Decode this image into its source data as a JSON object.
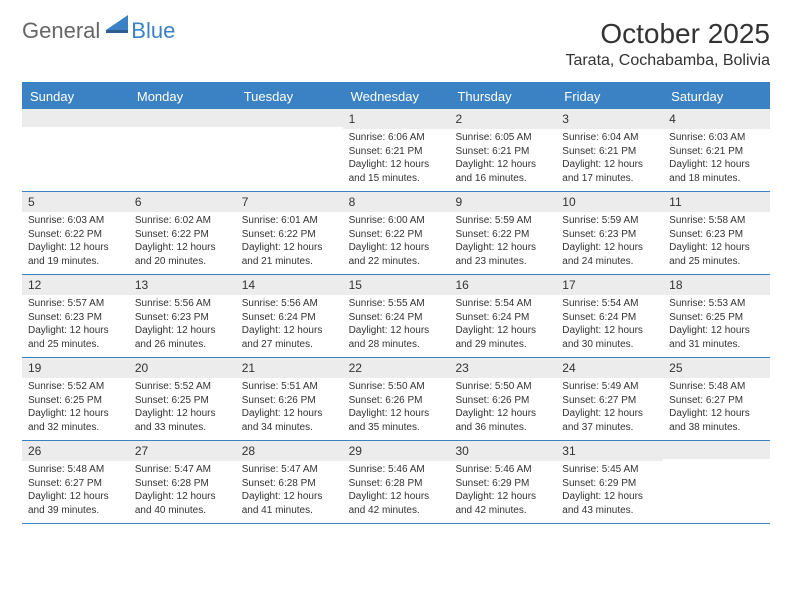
{
  "logo": {
    "text1": "General",
    "text2": "Blue"
  },
  "title": "October 2025",
  "location": "Tarata, Cochabamba, Bolivia",
  "colors": {
    "accent": "#3b82c4",
    "daynum_bg": "#ececec",
    "text": "#333333",
    "bg": "#ffffff"
  },
  "weekdays": [
    "Sunday",
    "Monday",
    "Tuesday",
    "Wednesday",
    "Thursday",
    "Friday",
    "Saturday"
  ],
  "weeks": [
    [
      {
        "num": "",
        "sunrise": "",
        "sunset": "",
        "daylight": ""
      },
      {
        "num": "",
        "sunrise": "",
        "sunset": "",
        "daylight": ""
      },
      {
        "num": "",
        "sunrise": "",
        "sunset": "",
        "daylight": ""
      },
      {
        "num": "1",
        "sunrise": "Sunrise: 6:06 AM",
        "sunset": "Sunset: 6:21 PM",
        "daylight": "Daylight: 12 hours and 15 minutes."
      },
      {
        "num": "2",
        "sunrise": "Sunrise: 6:05 AM",
        "sunset": "Sunset: 6:21 PM",
        "daylight": "Daylight: 12 hours and 16 minutes."
      },
      {
        "num": "3",
        "sunrise": "Sunrise: 6:04 AM",
        "sunset": "Sunset: 6:21 PM",
        "daylight": "Daylight: 12 hours and 17 minutes."
      },
      {
        "num": "4",
        "sunrise": "Sunrise: 6:03 AM",
        "sunset": "Sunset: 6:21 PM",
        "daylight": "Daylight: 12 hours and 18 minutes."
      }
    ],
    [
      {
        "num": "5",
        "sunrise": "Sunrise: 6:03 AM",
        "sunset": "Sunset: 6:22 PM",
        "daylight": "Daylight: 12 hours and 19 minutes."
      },
      {
        "num": "6",
        "sunrise": "Sunrise: 6:02 AM",
        "sunset": "Sunset: 6:22 PM",
        "daylight": "Daylight: 12 hours and 20 minutes."
      },
      {
        "num": "7",
        "sunrise": "Sunrise: 6:01 AM",
        "sunset": "Sunset: 6:22 PM",
        "daylight": "Daylight: 12 hours and 21 minutes."
      },
      {
        "num": "8",
        "sunrise": "Sunrise: 6:00 AM",
        "sunset": "Sunset: 6:22 PM",
        "daylight": "Daylight: 12 hours and 22 minutes."
      },
      {
        "num": "9",
        "sunrise": "Sunrise: 5:59 AM",
        "sunset": "Sunset: 6:22 PM",
        "daylight": "Daylight: 12 hours and 23 minutes."
      },
      {
        "num": "10",
        "sunrise": "Sunrise: 5:59 AM",
        "sunset": "Sunset: 6:23 PM",
        "daylight": "Daylight: 12 hours and 24 minutes."
      },
      {
        "num": "11",
        "sunrise": "Sunrise: 5:58 AM",
        "sunset": "Sunset: 6:23 PM",
        "daylight": "Daylight: 12 hours and 25 minutes."
      }
    ],
    [
      {
        "num": "12",
        "sunrise": "Sunrise: 5:57 AM",
        "sunset": "Sunset: 6:23 PM",
        "daylight": "Daylight: 12 hours and 25 minutes."
      },
      {
        "num": "13",
        "sunrise": "Sunrise: 5:56 AM",
        "sunset": "Sunset: 6:23 PM",
        "daylight": "Daylight: 12 hours and 26 minutes."
      },
      {
        "num": "14",
        "sunrise": "Sunrise: 5:56 AM",
        "sunset": "Sunset: 6:24 PM",
        "daylight": "Daylight: 12 hours and 27 minutes."
      },
      {
        "num": "15",
        "sunrise": "Sunrise: 5:55 AM",
        "sunset": "Sunset: 6:24 PM",
        "daylight": "Daylight: 12 hours and 28 minutes."
      },
      {
        "num": "16",
        "sunrise": "Sunrise: 5:54 AM",
        "sunset": "Sunset: 6:24 PM",
        "daylight": "Daylight: 12 hours and 29 minutes."
      },
      {
        "num": "17",
        "sunrise": "Sunrise: 5:54 AM",
        "sunset": "Sunset: 6:24 PM",
        "daylight": "Daylight: 12 hours and 30 minutes."
      },
      {
        "num": "18",
        "sunrise": "Sunrise: 5:53 AM",
        "sunset": "Sunset: 6:25 PM",
        "daylight": "Daylight: 12 hours and 31 minutes."
      }
    ],
    [
      {
        "num": "19",
        "sunrise": "Sunrise: 5:52 AM",
        "sunset": "Sunset: 6:25 PM",
        "daylight": "Daylight: 12 hours and 32 minutes."
      },
      {
        "num": "20",
        "sunrise": "Sunrise: 5:52 AM",
        "sunset": "Sunset: 6:25 PM",
        "daylight": "Daylight: 12 hours and 33 minutes."
      },
      {
        "num": "21",
        "sunrise": "Sunrise: 5:51 AM",
        "sunset": "Sunset: 6:26 PM",
        "daylight": "Daylight: 12 hours and 34 minutes."
      },
      {
        "num": "22",
        "sunrise": "Sunrise: 5:50 AM",
        "sunset": "Sunset: 6:26 PM",
        "daylight": "Daylight: 12 hours and 35 minutes."
      },
      {
        "num": "23",
        "sunrise": "Sunrise: 5:50 AM",
        "sunset": "Sunset: 6:26 PM",
        "daylight": "Daylight: 12 hours and 36 minutes."
      },
      {
        "num": "24",
        "sunrise": "Sunrise: 5:49 AM",
        "sunset": "Sunset: 6:27 PM",
        "daylight": "Daylight: 12 hours and 37 minutes."
      },
      {
        "num": "25",
        "sunrise": "Sunrise: 5:48 AM",
        "sunset": "Sunset: 6:27 PM",
        "daylight": "Daylight: 12 hours and 38 minutes."
      }
    ],
    [
      {
        "num": "26",
        "sunrise": "Sunrise: 5:48 AM",
        "sunset": "Sunset: 6:27 PM",
        "daylight": "Daylight: 12 hours and 39 minutes."
      },
      {
        "num": "27",
        "sunrise": "Sunrise: 5:47 AM",
        "sunset": "Sunset: 6:28 PM",
        "daylight": "Daylight: 12 hours and 40 minutes."
      },
      {
        "num": "28",
        "sunrise": "Sunrise: 5:47 AM",
        "sunset": "Sunset: 6:28 PM",
        "daylight": "Daylight: 12 hours and 41 minutes."
      },
      {
        "num": "29",
        "sunrise": "Sunrise: 5:46 AM",
        "sunset": "Sunset: 6:28 PM",
        "daylight": "Daylight: 12 hours and 42 minutes."
      },
      {
        "num": "30",
        "sunrise": "Sunrise: 5:46 AM",
        "sunset": "Sunset: 6:29 PM",
        "daylight": "Daylight: 12 hours and 42 minutes."
      },
      {
        "num": "31",
        "sunrise": "Sunrise: 5:45 AM",
        "sunset": "Sunset: 6:29 PM",
        "daylight": "Daylight: 12 hours and 43 minutes."
      },
      {
        "num": "",
        "sunrise": "",
        "sunset": "",
        "daylight": ""
      }
    ]
  ]
}
